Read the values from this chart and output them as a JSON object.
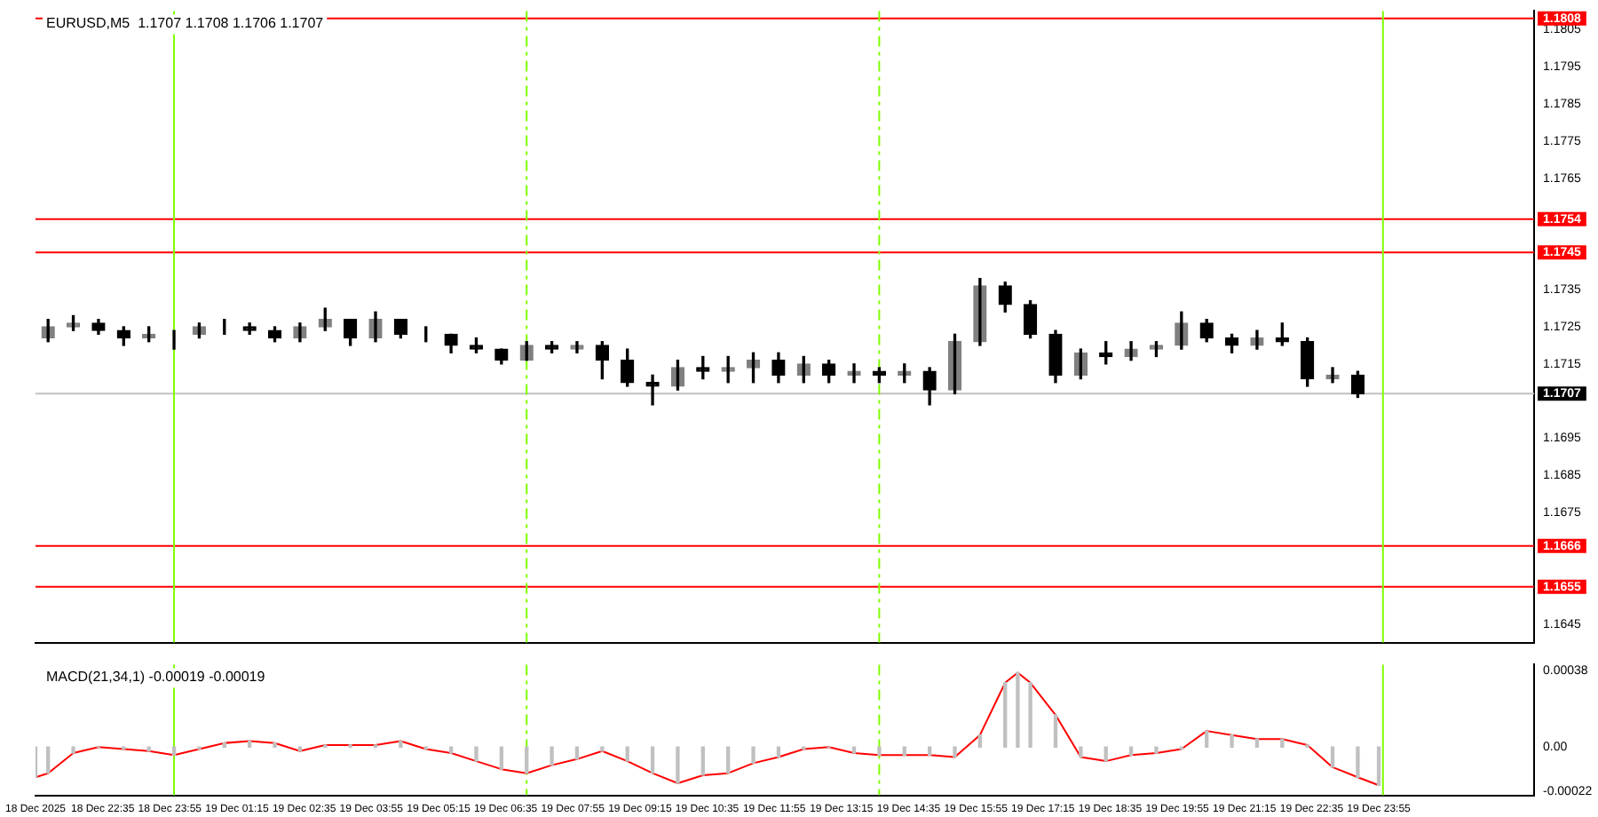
{
  "chart_data": [
    {
      "type": "candlestick",
      "title": "EURUSD,M5  1.1707 1.1708 1.1706 1.1707",
      "color": "#000000",
      "x": [
        "2025-12-18T21:30",
        "2025-12-18T22:00",
        "2025-12-18T22:30",
        "2025-12-18T23:00",
        "2025-12-18T23:30",
        "2025-12-19T00:00",
        "2025-12-19T00:30",
        "2025-12-19T01:00",
        "2025-12-19T01:30",
        "2025-12-19T02:00",
        "2025-12-19T02:30",
        "2025-12-19T03:00",
        "2025-12-19T03:30",
        "2025-12-19T04:00",
        "2025-12-19T04:30",
        "2025-12-19T05:00",
        "2025-12-19T05:30",
        "2025-12-19T06:00",
        "2025-12-19T06:30",
        "2025-12-19T07:00",
        "2025-12-19T07:30",
        "2025-12-19T08:00",
        "2025-12-19T08:30",
        "2025-12-19T09:00",
        "2025-12-19T09:30",
        "2025-12-19T10:00",
        "2025-12-19T10:30",
        "2025-12-19T11:00",
        "2025-12-19T11:30",
        "2025-12-19T12:00",
        "2025-12-19T12:30",
        "2025-12-19T13:00",
        "2025-12-19T13:30",
        "2025-12-19T14:00",
        "2025-12-19T14:30",
        "2025-12-19T15:00",
        "2025-12-19T15:30",
        "2025-12-19T16:00",
        "2025-12-19T16:30",
        "2025-12-19T17:00",
        "2025-12-19T17:30",
        "2025-12-19T18:00",
        "2025-12-19T18:30",
        "2025-12-19T19:00",
        "2025-12-19T19:30",
        "2025-12-19T20:00",
        "2025-12-19T20:30",
        "2025-12-19T21:00",
        "2025-12-19T21:30",
        "2025-12-19T22:00",
        "2025-12-19T22:30",
        "2025-12-19T23:00",
        "2025-12-19T23:30"
      ],
      "ohlc": [
        [
          1.1722,
          1.1727,
          1.1721,
          1.1725
        ],
        [
          1.1725,
          1.1728,
          1.1724,
          1.1726
        ],
        [
          1.1726,
          1.1727,
          1.1723,
          1.1724
        ],
        [
          1.1724,
          1.1725,
          1.172,
          1.1722
        ],
        [
          1.1722,
          1.1725,
          1.1721,
          1.1723
        ],
        [
          1.1723,
          1.1724,
          1.1719,
          1.1723
        ],
        [
          1.1723,
          1.1726,
          1.1722,
          1.1725
        ],
        [
          1.1725,
          1.1727,
          1.1723,
          1.1725
        ],
        [
          1.1725,
          1.1726,
          1.1723,
          1.1724
        ],
        [
          1.1724,
          1.1725,
          1.1721,
          1.1722
        ],
        [
          1.1722,
          1.1726,
          1.1721,
          1.1725
        ],
        [
          1.1725,
          1.173,
          1.1724,
          1.1727
        ],
        [
          1.1727,
          1.1727,
          1.172,
          1.1722
        ],
        [
          1.1722,
          1.1729,
          1.1721,
          1.1727
        ],
        [
          1.1727,
          1.1727,
          1.1722,
          1.1723
        ],
        [
          1.1723,
          1.1725,
          1.1721,
          1.1723
        ],
        [
          1.1723,
          1.1723,
          1.1718,
          1.172
        ],
        [
          1.172,
          1.1722,
          1.1718,
          1.1719
        ],
        [
          1.1719,
          1.1719,
          1.1715,
          1.1716
        ],
        [
          1.1716,
          1.1721,
          1.1716,
          1.172
        ],
        [
          1.172,
          1.1721,
          1.1718,
          1.1719
        ],
        [
          1.1719,
          1.1721,
          1.1718,
          1.172
        ],
        [
          1.172,
          1.1721,
          1.1711,
          1.1716
        ],
        [
          1.1716,
          1.1719,
          1.1709,
          1.171
        ],
        [
          1.171,
          1.1712,
          1.1704,
          1.1709
        ],
        [
          1.1709,
          1.1716,
          1.1708,
          1.1714
        ],
        [
          1.1714,
          1.1717,
          1.1711,
          1.1713
        ],
        [
          1.1713,
          1.1717,
          1.171,
          1.1714
        ],
        [
          1.1714,
          1.1718,
          1.171,
          1.1716
        ],
        [
          1.1716,
          1.1718,
          1.171,
          1.1712
        ],
        [
          1.1712,
          1.1717,
          1.171,
          1.1715
        ],
        [
          1.1715,
          1.1716,
          1.171,
          1.1712
        ],
        [
          1.1712,
          1.1715,
          1.171,
          1.1713
        ],
        [
          1.1713,
          1.1714,
          1.171,
          1.1712
        ],
        [
          1.1712,
          1.1715,
          1.171,
          1.1713
        ],
        [
          1.1713,
          1.1714,
          1.1704,
          1.1708
        ],
        [
          1.1708,
          1.1723,
          1.1707,
          1.1721
        ],
        [
          1.1721,
          1.1738,
          1.172,
          1.1736
        ],
        [
          1.1736,
          1.1737,
          1.1729,
          1.1731
        ],
        [
          1.1731,
          1.1732,
          1.1722,
          1.1723
        ],
        [
          1.1723,
          1.1724,
          1.171,
          1.1712
        ],
        [
          1.1712,
          1.1719,
          1.1711,
          1.1718
        ],
        [
          1.1718,
          1.1721,
          1.1715,
          1.1717
        ],
        [
          1.1717,
          1.1721,
          1.1716,
          1.1719
        ],
        [
          1.1719,
          1.1721,
          1.1717,
          1.172
        ],
        [
          1.172,
          1.1729,
          1.1719,
          1.1726
        ],
        [
          1.1726,
          1.1727,
          1.1721,
          1.1722
        ],
        [
          1.1722,
          1.1723,
          1.1718,
          1.172
        ],
        [
          1.172,
          1.1724,
          1.1719,
          1.1722
        ],
        [
          1.1722,
          1.1726,
          1.172,
          1.1721
        ],
        [
          1.1721,
          1.1722,
          1.1709,
          1.1711
        ],
        [
          1.1711,
          1.1714,
          1.171,
          1.1712
        ],
        [
          1.1712,
          1.1713,
          1.1706,
          1.1707
        ]
      ],
      "xlim": [
        "2025-12-18T21:15",
        "2025-12-20T03:00"
      ],
      "ylim": [
        1.164,
        1.181
      ],
      "yticks": [
        1.1645,
        1.1675,
        1.1685,
        1.1695,
        1.1715,
        1.1725,
        1.1735,
        1.1765,
        1.1775,
        1.1785,
        1.1795,
        1.1805
      ],
      "colors": [
        "#808080",
        "#808080",
        "#000000",
        "#000000",
        "#808080",
        "#808080",
        "#808080",
        "#808080",
        "#000000",
        "#000000",
        "#808080",
        "#808080",
        "#000000",
        "#808080",
        "#000000",
        "#808080",
        "#000000",
        "#000000",
        "#000000",
        "#808080",
        "#000000",
        "#808080",
        "#000000",
        "#000000",
        "#000000",
        "#808080",
        "#000000",
        "#808080",
        "#808080",
        "#000000",
        "#808080",
        "#000000",
        "#808080",
        "#000000",
        "#808080",
        "#000000",
        "#808080",
        "#808080",
        "#000000",
        "#000000",
        "#000000",
        "#808080",
        "#000000",
        "#808080",
        "#808080",
        "#808080",
        "#000000",
        "#000000",
        "#808080",
        "#000000",
        "#000000",
        "#808080",
        "#000000"
      ],
      "tick_labels": "y",
      "ref_lines": [
        {
          "axis": "y",
          "value": 1.1808,
          "label": "1.1808",
          "color": "#ff0000"
        },
        {
          "axis": "y",
          "value": 1.1754,
          "label": "1.1754",
          "color": "#ff0000"
        },
        {
          "axis": "y",
          "value": 1.1745,
          "label": "1.1745",
          "color": "#ff0000"
        },
        {
          "axis": "y",
          "value": 1.1666,
          "label": "1.1666",
          "color": "#ff0000"
        },
        {
          "axis": "y",
          "value": 1.1655,
          "label": "1.1655",
          "color": "#ff0000"
        },
        {
          "axis": "y",
          "value": 1.1707,
          "label": "1.1707",
          "color": "#c0c0c0"
        },
        {
          "axis": "x",
          "value": "2025-12-19T00:00",
          "color": "#7fff00"
        },
        {
          "axis": "x",
          "value": "2025-12-19T07:00",
          "color": "#7fff00",
          "line_style": "dashed"
        },
        {
          "axis": "x",
          "value": "2025-12-19T14:00",
          "color": "#7fff00",
          "line_style": "dashed"
        },
        {
          "axis": "x",
          "value": "2025-12-20T00:00",
          "color": "#7fff00"
        }
      ]
    },
    {
      "type": "bar",
      "title": "MACD(21,34,1) -0.00019 -0.00019",
      "series": [
        {
          "type": "bar",
          "color": "#c0c0c0",
          "x": [
            "2025-12-18T21:15",
            "2025-12-18T21:30",
            "2025-12-18T22:00",
            "2025-12-18T22:30",
            "2025-12-18T23:00",
            "2025-12-18T23:30",
            "2025-12-19T00:00",
            "2025-12-19T00:30",
            "2025-12-19T01:00",
            "2025-12-19T01:30",
            "2025-12-19T02:00",
            "2025-12-19T02:30",
            "2025-12-19T03:00",
            "2025-12-19T03:30",
            "2025-12-19T04:00",
            "2025-12-19T04:30",
            "2025-12-19T05:00",
            "2025-12-19T05:30",
            "2025-12-19T06:00",
            "2025-12-19T06:30",
            "2025-12-19T07:00",
            "2025-12-19T07:30",
            "2025-12-19T08:00",
            "2025-12-19T08:30",
            "2025-12-19T09:00",
            "2025-12-19T09:30",
            "2025-12-19T10:00",
            "2025-12-19T10:30",
            "2025-12-19T11:00",
            "2025-12-19T11:30",
            "2025-12-19T12:00",
            "2025-12-19T12:30",
            "2025-12-19T13:00",
            "2025-12-19T13:30",
            "2025-12-19T14:00",
            "2025-12-19T14:30",
            "2025-12-19T15:00",
            "2025-12-19T15:30",
            "2025-12-19T16:00",
            "2025-12-19T16:30",
            "2025-12-19T16:45",
            "2025-12-19T17:00",
            "2025-12-19T17:30",
            "2025-12-19T18:00",
            "2025-12-19T18:30",
            "2025-12-19T19:00",
            "2025-12-19T19:30",
            "2025-12-19T20:00",
            "2025-12-19T20:30",
            "2025-12-19T21:00",
            "2025-12-19T21:30",
            "2025-12-19T22:00",
            "2025-12-19T22:30",
            "2025-12-19T23:00",
            "2025-12-19T23:30",
            "2025-12-19T23:55"
          ],
          "values": [
            -0.00015,
            -0.00013,
            -3e-05,
            0,
            -1e-05,
            -2e-05,
            -4e-05,
            -1e-05,
            2e-05,
            3e-05,
            2e-05,
            -2e-05,
            1e-05,
            1e-05,
            1e-05,
            3e-05,
            -1e-05,
            -3e-05,
            -7e-05,
            -0.00011,
            -0.00013,
            -9e-05,
            -6e-05,
            -2e-05,
            -7e-05,
            -0.00013,
            -0.00018,
            -0.00014,
            -0.00013,
            -8e-05,
            -5e-05,
            -1e-05,
            0,
            -3e-05,
            -4e-05,
            -4e-05,
            -4e-05,
            -5e-05,
            6e-05,
            0.00032,
            0.00037,
            0.00032,
            0.00016,
            -5e-05,
            -7e-05,
            -4e-05,
            -3e-05,
            -1e-05,
            8e-05,
            6e-05,
            4e-05,
            4e-05,
            1e-05,
            -0.0001,
            -0.00015,
            -0.00019
          ]
        },
        {
          "type": "line",
          "color": "#ff0000",
          "x": [
            "2025-12-18T21:15",
            "2025-12-18T21:30",
            "2025-12-18T22:00",
            "2025-12-18T22:30",
            "2025-12-18T23:00",
            "2025-12-18T23:30",
            "2025-12-19T00:00",
            "2025-12-19T00:30",
            "2025-12-19T01:00",
            "2025-12-19T01:30",
            "2025-12-19T02:00",
            "2025-12-19T02:30",
            "2025-12-19T03:00",
            "2025-12-19T03:30",
            "2025-12-19T04:00",
            "2025-12-19T04:30",
            "2025-12-19T05:00",
            "2025-12-19T05:30",
            "2025-12-19T06:00",
            "2025-12-19T06:30",
            "2025-12-19T07:00",
            "2025-12-19T07:30",
            "2025-12-19T08:00",
            "2025-12-19T08:30",
            "2025-12-19T09:00",
            "2025-12-19T09:30",
            "2025-12-19T10:00",
            "2025-12-19T10:30",
            "2025-12-19T11:00",
            "2025-12-19T11:30",
            "2025-12-19T12:00",
            "2025-12-19T12:30",
            "2025-12-19T13:00",
            "2025-12-19T13:30",
            "2025-12-19T14:00",
            "2025-12-19T14:30",
            "2025-12-19T15:00",
            "2025-12-19T15:30",
            "2025-12-19T16:00",
            "2025-12-19T16:30",
            "2025-12-19T16:45",
            "2025-12-19T17:00",
            "2025-12-19T17:30",
            "2025-12-19T18:00",
            "2025-12-19T18:30",
            "2025-12-19T19:00",
            "2025-12-19T19:30",
            "2025-12-19T20:00",
            "2025-12-19T20:30",
            "2025-12-19T21:00",
            "2025-12-19T21:30",
            "2025-12-19T22:00",
            "2025-12-19T22:30",
            "2025-12-19T23:00",
            "2025-12-19T23:30",
            "2025-12-19T23:55"
          ],
          "values": [
            -0.00015,
            -0.00013,
            -3e-05,
            0,
            -1e-05,
            -2e-05,
            -4e-05,
            -1e-05,
            2e-05,
            3e-05,
            2e-05,
            -2e-05,
            1e-05,
            1e-05,
            1e-05,
            3e-05,
            -1e-05,
            -3e-05,
            -7e-05,
            -0.00011,
            -0.00013,
            -9e-05,
            -6e-05,
            -2e-05,
            -7e-05,
            -0.00013,
            -0.00018,
            -0.00014,
            -0.00013,
            -8e-05,
            -5e-05,
            -1e-05,
            0,
            -3e-05,
            -4e-05,
            -4e-05,
            -4e-05,
            -5e-05,
            6e-05,
            0.00032,
            0.00037,
            0.00032,
            0.00016,
            -5e-05,
            -7e-05,
            -4e-05,
            -3e-05,
            -1e-05,
            8e-05,
            6e-05,
            4e-05,
            4e-05,
            1e-05,
            -0.0001,
            -0.00015,
            -0.00019
          ]
        }
      ],
      "xlim": [
        "2025-12-18T21:15",
        "2025-12-20T03:00"
      ],
      "ylim": [
        -0.00024,
        0.00041
      ],
      "yticks": [
        {
          "value": -0.00022,
          "label": "-0.00022"
        },
        {
          "value": 0,
          "label": "0.00"
        },
        {
          "value": 0.00038,
          "label": "0.00038"
        }
      ],
      "xticks": [
        {
          "value": "2025-12-18T21:15",
          "label": "18 Dec 2025"
        },
        {
          "value": "2025-12-18T22:35",
          "label": "18 Dec 22:35"
        },
        {
          "value": "2025-12-18T23:55",
          "label": "18 Dec 23:55"
        },
        {
          "value": "2025-12-19T01:15",
          "label": "19 Dec 01:15"
        },
        {
          "value": "2025-12-19T02:35",
          "label": "19 Dec 02:35"
        },
        {
          "value": "2025-12-19T03:55",
          "label": "19 Dec 03:55"
        },
        {
          "value": "2025-12-19T05:15",
          "label": "19 Dec 05:15"
        },
        {
          "value": "2025-12-19T06:35",
          "label": "19 Dec 06:35"
        },
        {
          "value": "2025-12-19T07:55",
          "label": "19 Dec 07:55"
        },
        {
          "value": "2025-12-19T09:15",
          "label": "19 Dec 09:15"
        },
        {
          "value": "2025-12-19T10:35",
          "label": "19 Dec 10:35"
        },
        {
          "value": "2025-12-19T11:55",
          "label": "19 Dec 11:55"
        },
        {
          "value": "2025-12-19T13:15",
          "label": "19 Dec 13:15"
        },
        {
          "value": "2025-12-19T14:35",
          "label": "19 Dec 14:35"
        },
        {
          "value": "2025-12-19T15:55",
          "label": "19 Dec 15:55"
        },
        {
          "value": "2025-12-19T17:15",
          "label": "19 Dec 17:15"
        },
        {
          "value": "2025-12-19T18:35",
          "label": "19 Dec 18:35"
        },
        {
          "value": "2025-12-19T19:55",
          "label": "19 Dec 19:55"
        },
        {
          "value": "2025-12-19T21:15",
          "label": "19 Dec 21:15"
        },
        {
          "value": "2025-12-19T22:35",
          "label": "19 Dec 22:35"
        },
        {
          "value": "2025-12-19T23:55",
          "label": "19 Dec 23:55"
        }
      ],
      "ref_lines": [
        {
          "axis": "x",
          "value": "2025-12-19T00:00",
          "color": "#7fff00"
        },
        {
          "axis": "x",
          "value": "2025-12-19T07:00",
          "color": "#7fff00",
          "line_style": "dashed"
        },
        {
          "axis": "x",
          "value": "2025-12-19T14:00",
          "color": "#7fff00",
          "line_style": "dashed"
        },
        {
          "axis": "x",
          "value": "2025-12-20T00:00",
          "color": "#7fff00"
        }
      ]
    }
  ]
}
